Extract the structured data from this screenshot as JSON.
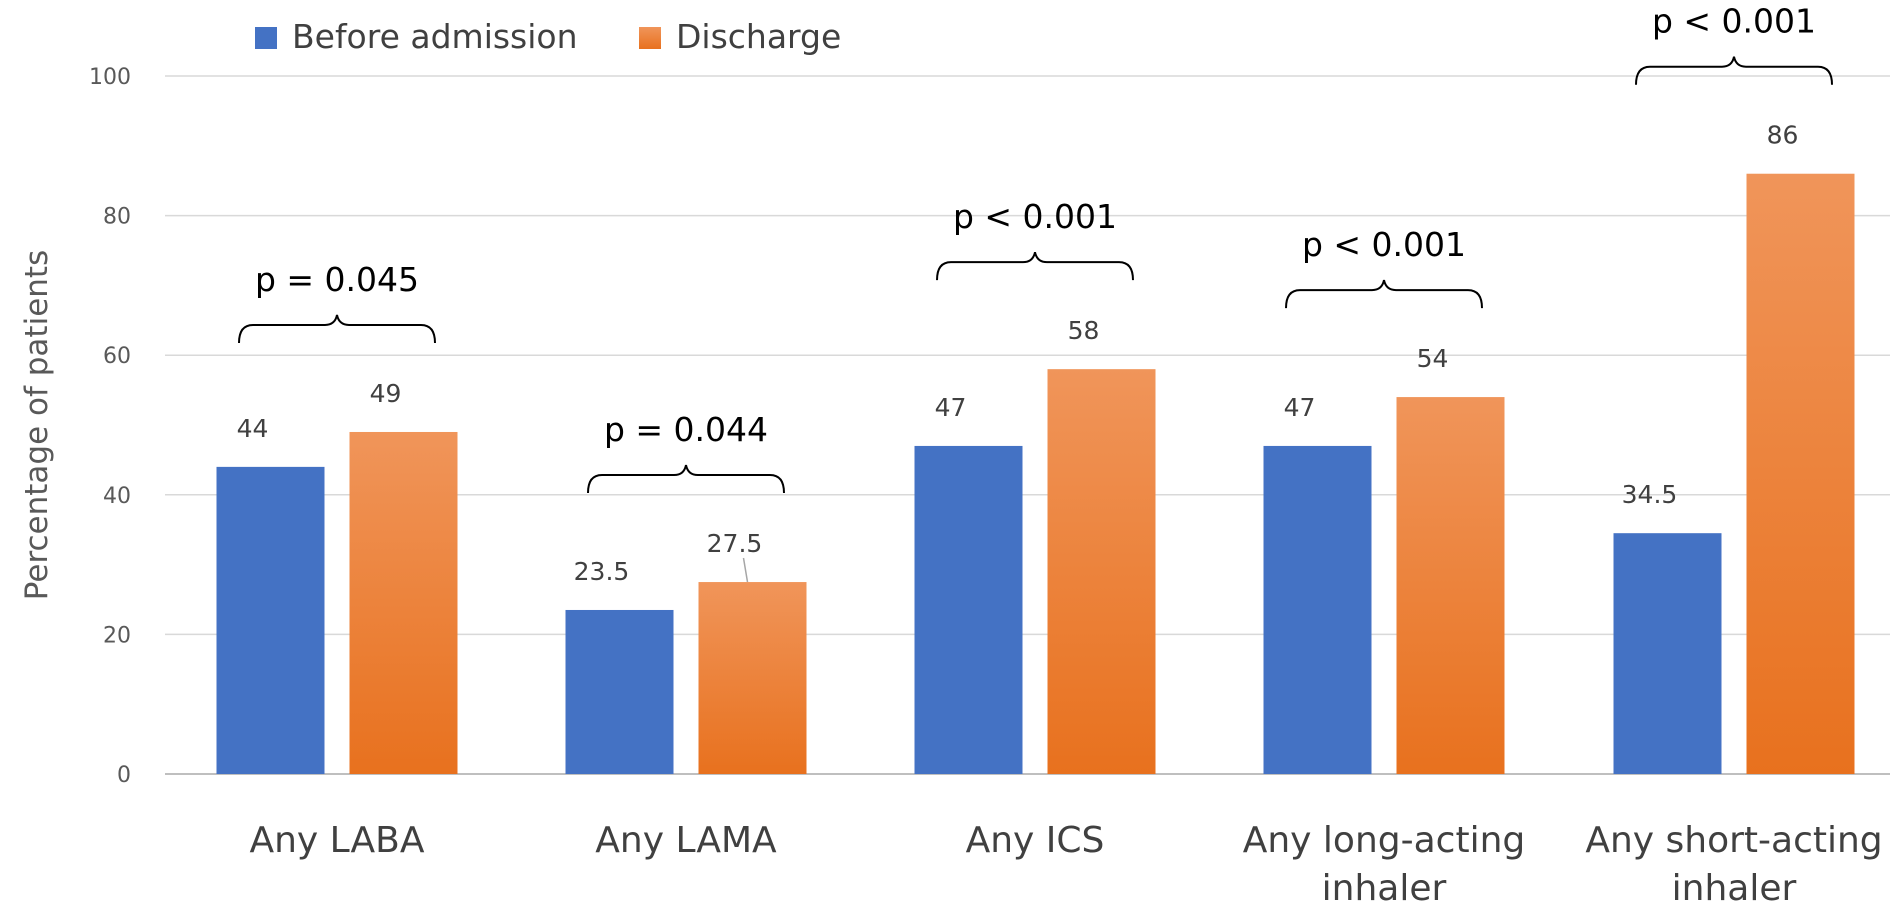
{
  "chart_data": {
    "type": "bar",
    "title": "",
    "xlabel": "",
    "ylabel": "Percentage of patients",
    "ylim": [
      0,
      100
    ],
    "yticks": [
      0,
      20,
      40,
      60,
      80,
      100
    ],
    "grid": true,
    "legend_position": "top-left",
    "categories": [
      [
        "Any LABA"
      ],
      [
        "Any LAMA"
      ],
      [
        "Any ICS"
      ],
      [
        "Any long-acting",
        "inhaler"
      ],
      [
        "Any short-acting",
        "inhaler"
      ]
    ],
    "series": [
      {
        "name": "Before admission",
        "color": "#4472c4",
        "values": [
          44,
          23.5,
          47,
          47,
          34.5
        ]
      },
      {
        "name": "Discharge",
        "color": "#ed7d31",
        "values": [
          49,
          27.5,
          58,
          54,
          86
        ]
      }
    ],
    "annotations": [
      {
        "category_index": 0,
        "text": "p = 0.045"
      },
      {
        "category_index": 1,
        "text": "p = 0.044"
      },
      {
        "category_index": 2,
        "text": "p < 0.001"
      },
      {
        "category_index": 3,
        "text": "p < 0.001"
      },
      {
        "category_index": 4,
        "text": "p < 0.001"
      }
    ]
  }
}
